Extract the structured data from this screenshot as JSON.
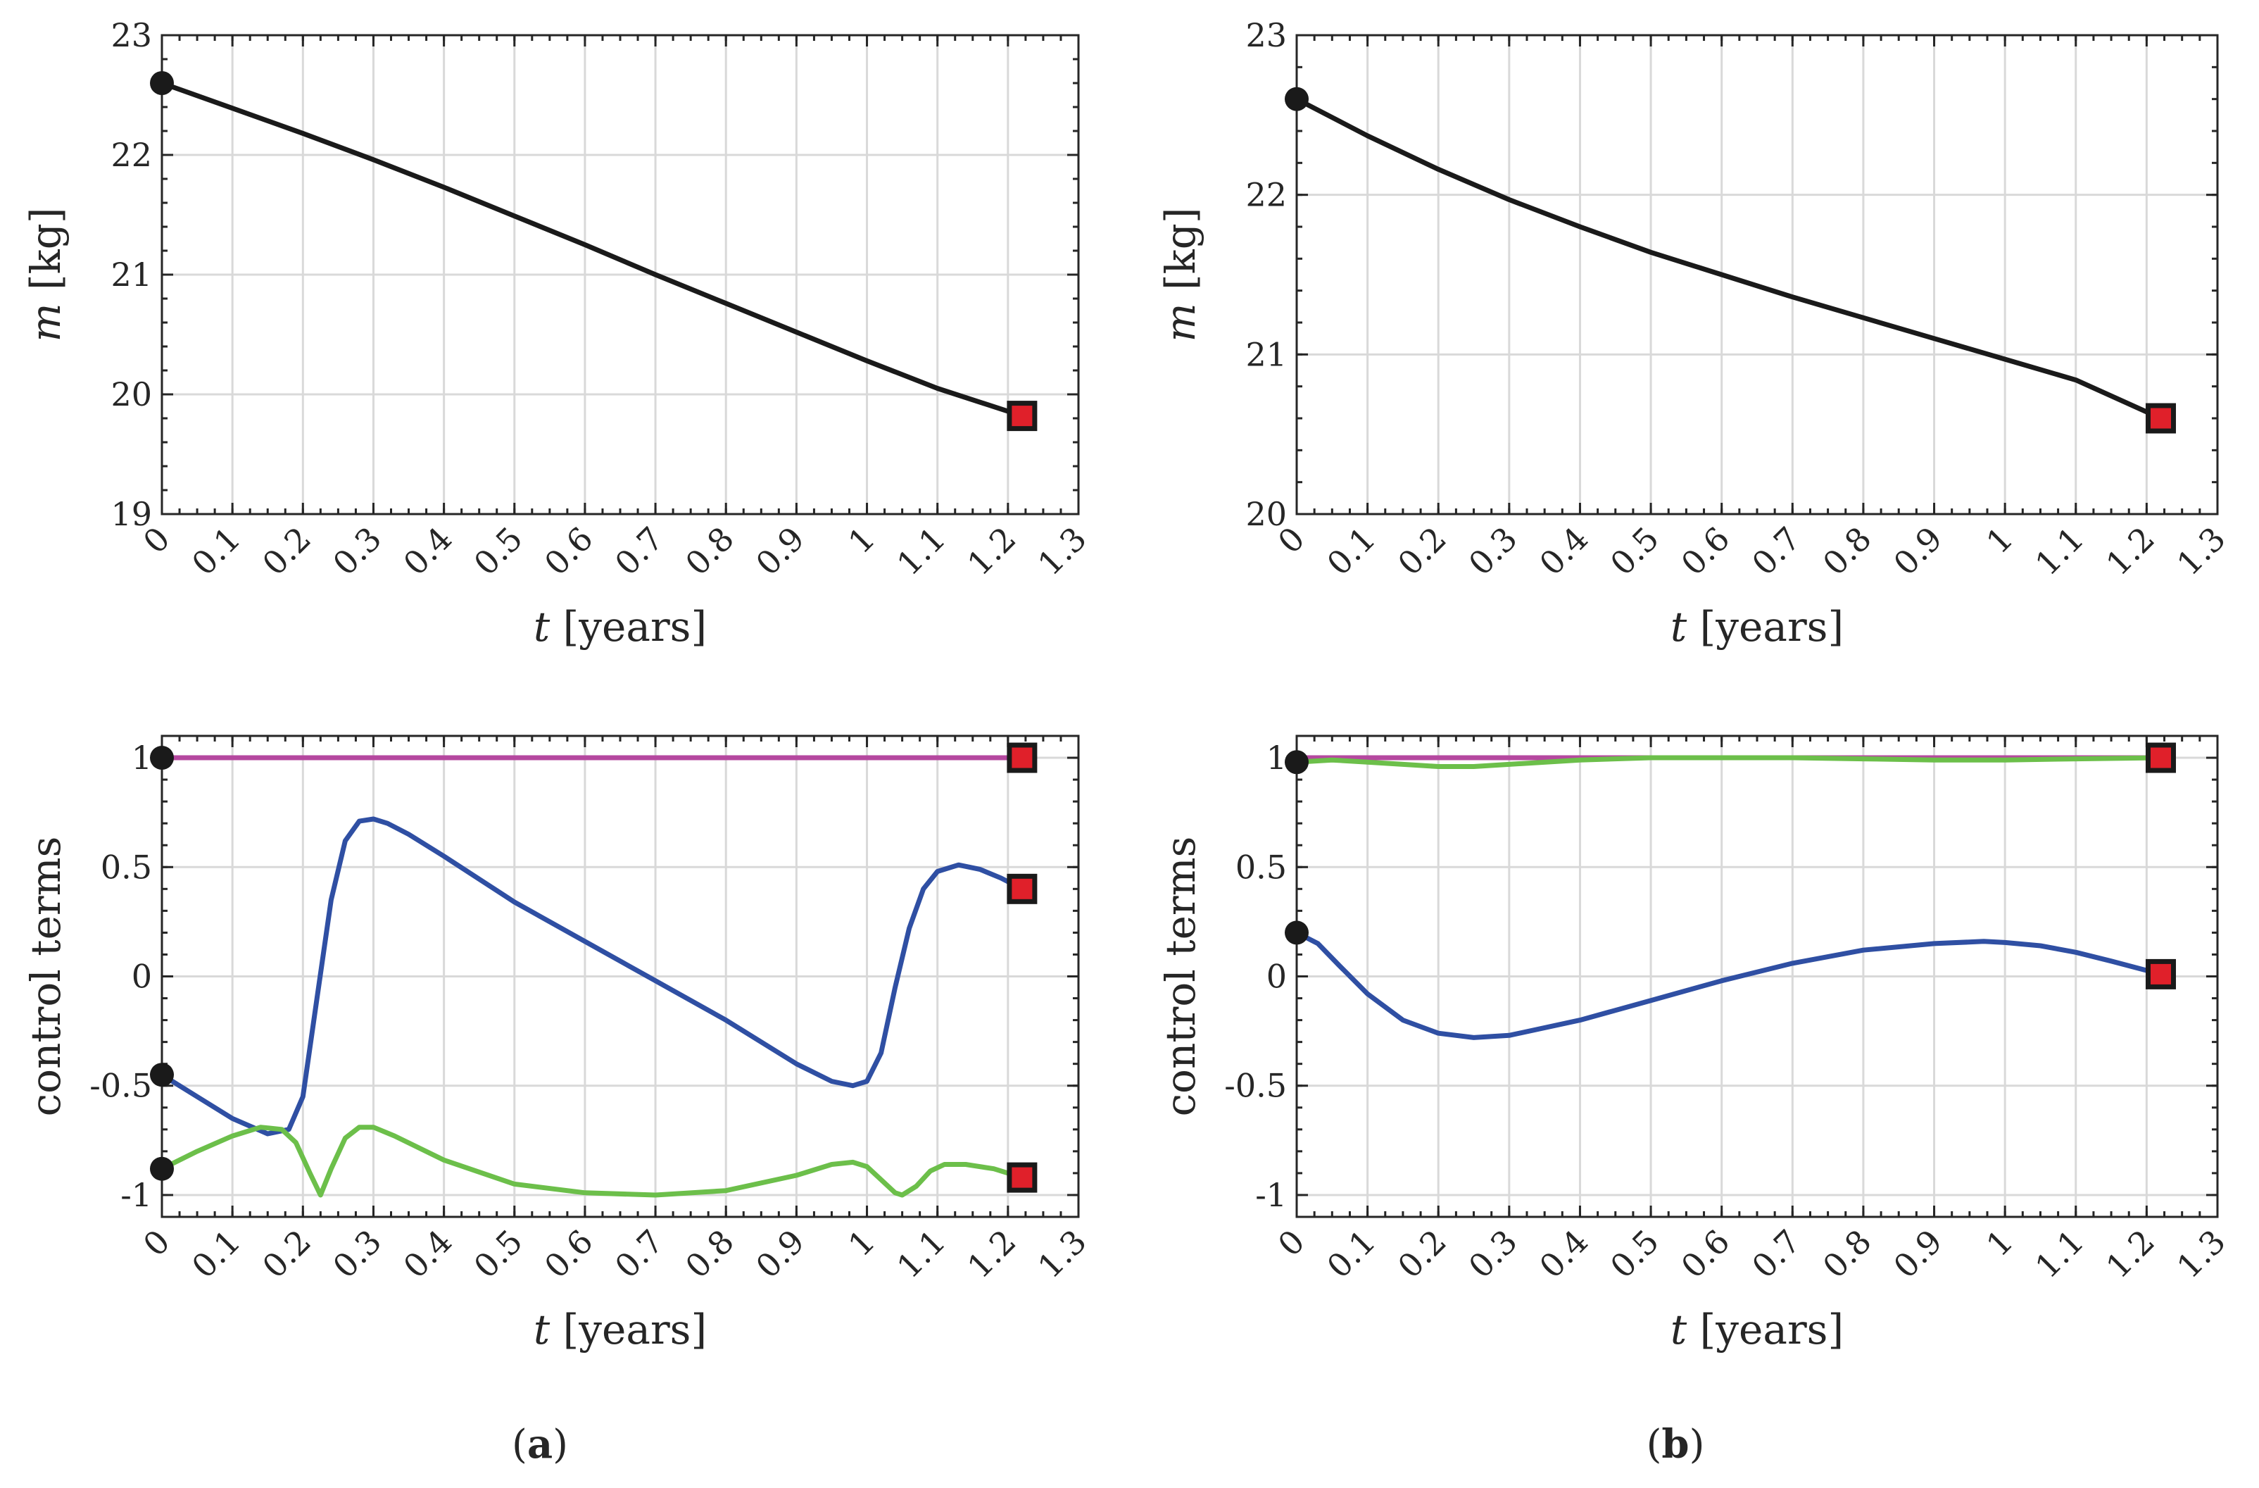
{
  "chart_data": [
    {
      "type": "line",
      "panel": "a",
      "xlabel": [
        "t",
        " [years]"
      ],
      "ylabel": [
        "m",
        " [kg]"
      ],
      "xlim": [
        0,
        1.3
      ],
      "ylim": [
        19,
        23
      ],
      "xticks": [
        "0",
        "0.1",
        "0.2",
        "0.3",
        "0.4",
        "0.5",
        "0.6",
        "0.7",
        "0.8",
        "0.9",
        "1",
        "1.1",
        "1.2",
        "1.3"
      ],
      "yticks": [
        "19",
        "20",
        "21",
        "22",
        "23"
      ],
      "grid": true,
      "series": [
        {
          "color": "#1a1a1a",
          "x": [
            0,
            0.1,
            0.2,
            0.3,
            0.4,
            0.5,
            0.6,
            0.7,
            0.8,
            0.9,
            1.0,
            1.1,
            1.22
          ],
          "y": [
            22.6,
            22.39,
            22.18,
            21.96,
            21.73,
            21.49,
            21.25,
            21.0,
            20.76,
            20.52,
            20.28,
            20.05,
            19.82
          ],
          "start_marker": "circle",
          "end_marker": "square"
        }
      ]
    },
    {
      "type": "line",
      "panel": "b",
      "xlabel": [
        "t",
        " [years]"
      ],
      "ylabel": [
        "m",
        " [kg]"
      ],
      "xlim": [
        0,
        1.3
      ],
      "ylim": [
        20,
        23
      ],
      "xticks": [
        "0",
        "0.1",
        "0.2",
        "0.3",
        "0.4",
        "0.5",
        "0.6",
        "0.7",
        "0.8",
        "0.9",
        "1",
        "1.1",
        "1.2",
        "1.3"
      ],
      "yticks": [
        "20",
        "21",
        "22",
        "23"
      ],
      "grid": true,
      "series": [
        {
          "color": "#1a1a1a",
          "x": [
            0,
            0.1,
            0.2,
            0.3,
            0.4,
            0.5,
            0.6,
            0.7,
            0.8,
            0.9,
            1.0,
            1.1,
            1.22
          ],
          "y": [
            22.6,
            22.37,
            22.16,
            21.97,
            21.8,
            21.64,
            21.5,
            21.36,
            21.23,
            21.1,
            20.97,
            20.84,
            20.6
          ],
          "start_marker": "circle",
          "end_marker": "square"
        }
      ]
    },
    {
      "type": "line",
      "panel": "a",
      "xlabel": [
        "t",
        " [years]"
      ],
      "ylabel": [
        "control terms"
      ],
      "xlim": [
        0,
        1.3
      ],
      "ylim": [
        -1.1,
        1.1
      ],
      "xticks": [
        "0",
        "0.1",
        "0.2",
        "0.3",
        "0.4",
        "0.5",
        "0.6",
        "0.7",
        "0.8",
        "0.9",
        "1",
        "1.1",
        "1.2",
        "1.3"
      ],
      "yticks": [
        "-1",
        "-0.5",
        "0",
        "0.5",
        "1"
      ],
      "grid": true,
      "series": [
        {
          "color": "#b5489f",
          "x": [
            0,
            1.22
          ],
          "y": [
            1.0,
            1.0
          ],
          "start_marker": "circle",
          "end_marker": "square"
        },
        {
          "color": "#2f4fa3",
          "x": [
            0,
            0.05,
            0.1,
            0.15,
            0.18,
            0.2,
            0.22,
            0.24,
            0.26,
            0.28,
            0.3,
            0.32,
            0.35,
            0.4,
            0.5,
            0.6,
            0.7,
            0.8,
            0.9,
            0.95,
            0.98,
            1.0,
            1.02,
            1.04,
            1.06,
            1.08,
            1.1,
            1.13,
            1.16,
            1.19,
            1.22
          ],
          "y": [
            -0.45,
            -0.55,
            -0.65,
            -0.72,
            -0.7,
            -0.55,
            -0.1,
            0.35,
            0.62,
            0.71,
            0.72,
            0.7,
            0.65,
            0.55,
            0.34,
            0.16,
            -0.02,
            -0.2,
            -0.4,
            -0.48,
            -0.5,
            -0.48,
            -0.35,
            -0.05,
            0.22,
            0.4,
            0.48,
            0.51,
            0.49,
            0.45,
            0.4
          ]
        },
        {
          "color": "#6cbf4a",
          "x": [
            0,
            0.05,
            0.1,
            0.14,
            0.17,
            0.19,
            0.21,
            0.225,
            0.24,
            0.26,
            0.28,
            0.3,
            0.33,
            0.4,
            0.5,
            0.6,
            0.7,
            0.8,
            0.9,
            0.95,
            0.98,
            1.0,
            1.02,
            1.04,
            1.05,
            1.07,
            1.09,
            1.11,
            1.14,
            1.18,
            1.22
          ],
          "y": [
            -0.88,
            -0.8,
            -0.73,
            -0.69,
            -0.7,
            -0.76,
            -0.9,
            -1.0,
            -0.88,
            -0.74,
            -0.69,
            -0.69,
            -0.73,
            -0.84,
            -0.95,
            -0.99,
            -1.0,
            -0.98,
            -0.91,
            -0.86,
            -0.85,
            -0.87,
            -0.93,
            -0.99,
            -1.0,
            -0.96,
            -0.89,
            -0.86,
            -0.86,
            -0.88,
            -0.92
          ]
        },
        {
          "color": "#2f4fa3",
          "x": [
            0
          ],
          "y": [
            -0.45
          ],
          "start_marker": "circle",
          "hidden_line": true
        },
        {
          "color": "#6cbf4a",
          "x": [
            0
          ],
          "y": [
            -0.88
          ],
          "start_marker": "circle",
          "hidden_line": true
        },
        {
          "color": "#2f4fa3",
          "x": [
            1.22
          ],
          "y": [
            0.4
          ],
          "end_marker": "square",
          "hidden_line": true
        },
        {
          "color": "#6cbf4a",
          "x": [
            1.22
          ],
          "y": [
            -0.92
          ],
          "end_marker": "square",
          "hidden_line": true
        }
      ]
    },
    {
      "type": "line",
      "panel": "b",
      "xlabel": [
        "t",
        " [years]"
      ],
      "ylabel": [
        "control terms"
      ],
      "xlim": [
        0,
        1.3
      ],
      "ylim": [
        -1.1,
        1.1
      ],
      "xticks": [
        "0",
        "0.1",
        "0.2",
        "0.3",
        "0.4",
        "0.5",
        "0.6",
        "0.7",
        "0.8",
        "0.9",
        "1",
        "1.1",
        "1.2",
        "1.3"
      ],
      "yticks": [
        "-1",
        "-0.5",
        "0",
        "0.5",
        "1"
      ],
      "grid": true,
      "series": [
        {
          "color": "#b5489f",
          "x": [
            0,
            1.22
          ],
          "y": [
            1.0,
            1.0
          ]
        },
        {
          "color": "#6cbf4a",
          "x": [
            0,
            0.05,
            0.1,
            0.15,
            0.2,
            0.25,
            0.3,
            0.4,
            0.5,
            0.6,
            0.7,
            0.8,
            0.9,
            1.0,
            1.1,
            1.22
          ],
          "y": [
            0.98,
            0.99,
            0.98,
            0.97,
            0.96,
            0.96,
            0.97,
            0.99,
            1.0,
            1.0,
            1.0,
            0.995,
            0.99,
            0.99,
            0.995,
            1.0
          ],
          "start_marker": "circle",
          "end_marker": "square"
        },
        {
          "color": "#2f4fa3",
          "x": [
            0,
            0.03,
            0.06,
            0.1,
            0.15,
            0.2,
            0.25,
            0.3,
            0.4,
            0.5,
            0.6,
            0.7,
            0.8,
            0.9,
            0.97,
            1.0,
            1.05,
            1.1,
            1.15,
            1.22
          ],
          "y": [
            0.2,
            0.15,
            0.05,
            -0.08,
            -0.2,
            -0.26,
            -0.28,
            -0.27,
            -0.2,
            -0.11,
            -0.02,
            0.06,
            0.12,
            0.15,
            0.16,
            0.155,
            0.14,
            0.11,
            0.07,
            0.01
          ],
          "start_marker": "circle",
          "end_marker": "square"
        }
      ]
    }
  ],
  "captions": {
    "a": [
      "(",
      "a",
      ")"
    ],
    "b": [
      "(",
      "b",
      ")"
    ]
  }
}
